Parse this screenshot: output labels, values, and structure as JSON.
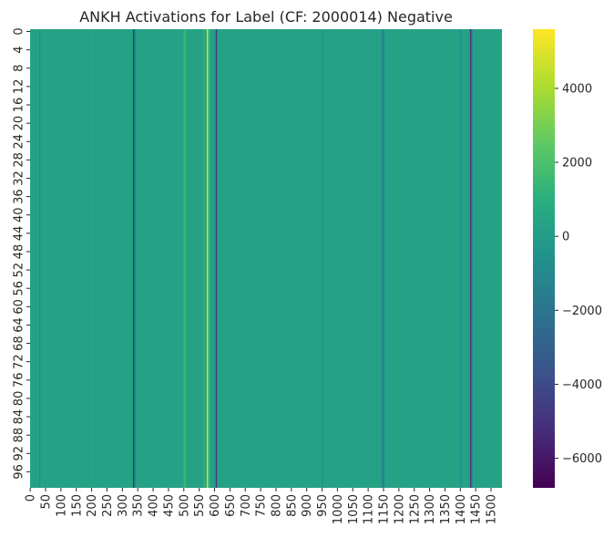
{
  "chart_data": {
    "type": "heatmap",
    "title": "ANKH Activations for Label (CF: 2000014) Negative",
    "xlabel": "",
    "ylabel": "",
    "colormap": "viridis",
    "rows": 100,
    "columns": 1536,
    "x_tick_labels": [
      "0",
      "50",
      "100",
      "150",
      "200",
      "250",
      "300",
      "350",
      "400",
      "450",
      "500",
      "550",
      "600",
      "650",
      "700",
      "750",
      "800",
      "850",
      "900",
      "950",
      "1000",
      "1050",
      "1100",
      "1150",
      "1200",
      "1250",
      "1300",
      "1350",
      "1400",
      "1450",
      "1500"
    ],
    "y_tick_labels": [
      "0",
      "4",
      "8",
      "12",
      "16",
      "20",
      "24",
      "28",
      "32",
      "36",
      "40",
      "44",
      "48",
      "52",
      "56",
      "60",
      "64",
      "68",
      "72",
      "76",
      "80",
      "84",
      "88",
      "92",
      "96"
    ],
    "colorbar": {
      "range": [
        -6800,
        5600
      ],
      "ticks": [
        4000,
        2000,
        0,
        -2000,
        -4000,
        -6000
      ],
      "tick_labels": [
        "4000",
        "2000",
        "0",
        "−2000",
        "−4000",
        "−6000"
      ]
    },
    "background_value": 300,
    "notable_columns": [
      {
        "column": 30,
        "value": -800
      },
      {
        "column": 200,
        "value": 600
      },
      {
        "column": 335,
        "value": -5500
      },
      {
        "column": 340,
        "value": -1500
      },
      {
        "column": 500,
        "value": 1800
      },
      {
        "column": 505,
        "value": 1200
      },
      {
        "column": 565,
        "value": 1500
      },
      {
        "column": 575,
        "value": 5200
      },
      {
        "column": 580,
        "value": 2500
      },
      {
        "column": 600,
        "value": -1000
      },
      {
        "column": 605,
        "value": -4800
      },
      {
        "column": 950,
        "value": -600
      },
      {
        "column": 1145,
        "value": -1800
      },
      {
        "column": 1150,
        "value": -1200
      },
      {
        "column": 1400,
        "value": -900
      },
      {
        "column": 1432,
        "value": -5000
      },
      {
        "column": 1436,
        "value": -2500
      }
    ]
  }
}
